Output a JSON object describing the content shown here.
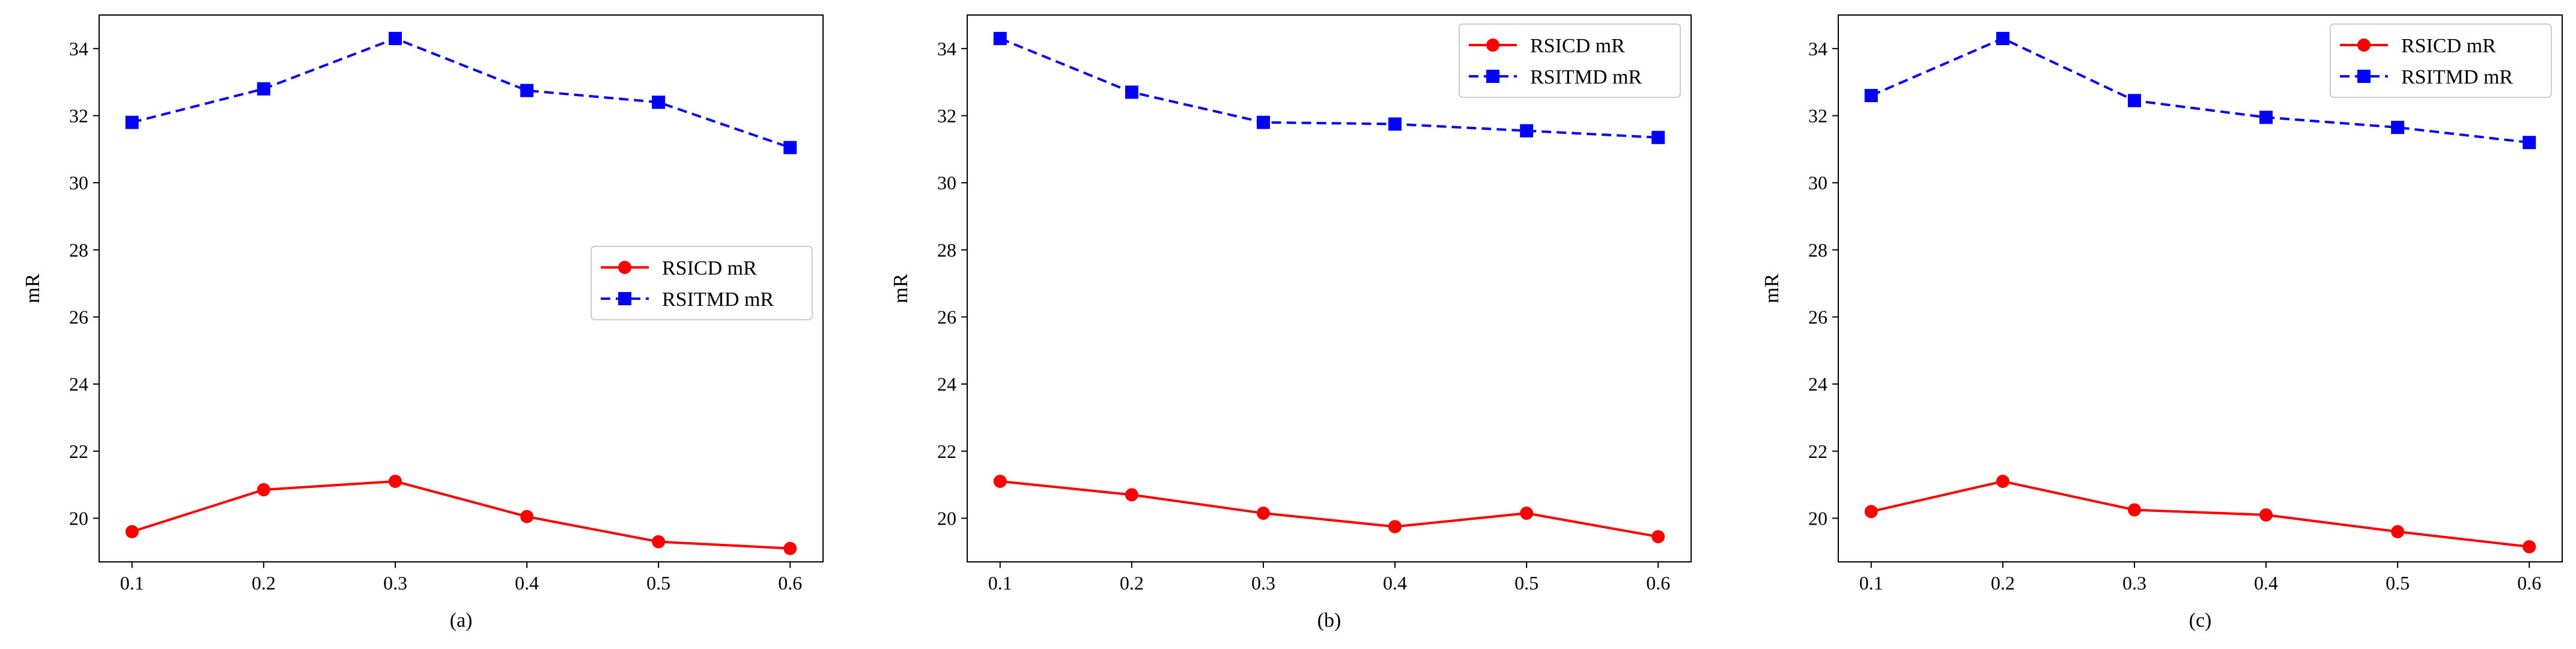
{
  "figure": {
    "colors": {
      "rsicd": "#ff0000",
      "rsitmd": "#0000ff"
    }
  },
  "chart_data": [
    {
      "type": "line",
      "caption": "(a)",
      "xlabel": "",
      "ylabel": "mR",
      "x": [
        0.1,
        0.2,
        0.3,
        0.4,
        0.5,
        0.6
      ],
      "x_tick_labels": [
        "0.1",
        "0.2",
        "0.3",
        "0.4",
        "0.5",
        "0.6"
      ],
      "y_tick_labels": [
        "20",
        "22",
        "24",
        "26",
        "28",
        "30",
        "32",
        "34"
      ],
      "xlim": [
        0.075,
        0.625
      ],
      "ylim": [
        18.7,
        35.0
      ],
      "legend_position": "center-right",
      "series": [
        {
          "name": "RSICD mR",
          "style": "solid",
          "marker": "circle",
          "values": [
            19.6,
            20.85,
            21.1,
            20.05,
            19.3,
            19.1
          ]
        },
        {
          "name": "RSITMD mR",
          "style": "dashed",
          "marker": "square",
          "values": [
            31.8,
            32.8,
            34.3,
            32.75,
            32.4,
            31.05
          ]
        }
      ]
    },
    {
      "type": "line",
      "caption": "(b)",
      "xlabel": "",
      "ylabel": "mR",
      "x": [
        0.1,
        0.2,
        0.3,
        0.4,
        0.5,
        0.6
      ],
      "x_tick_labels": [
        "0.1",
        "0.2",
        "0.3",
        "0.4",
        "0.5",
        "0.6"
      ],
      "y_tick_labels": [
        "20",
        "22",
        "24",
        "26",
        "28",
        "30",
        "32",
        "34"
      ],
      "xlim": [
        0.075,
        0.625
      ],
      "ylim": [
        18.7,
        35.0
      ],
      "legend_position": "top-right",
      "series": [
        {
          "name": "RSICD mR",
          "style": "solid",
          "marker": "circle",
          "values": [
            21.1,
            20.7,
            20.15,
            19.75,
            20.15,
            19.45
          ]
        },
        {
          "name": "RSITMD mR",
          "style": "dashed",
          "marker": "square",
          "values": [
            34.3,
            32.7,
            31.8,
            31.75,
            31.55,
            31.35
          ]
        }
      ]
    },
    {
      "type": "line",
      "caption": "(c)",
      "xlabel": "",
      "ylabel": "mR",
      "x": [
        0.1,
        0.2,
        0.3,
        0.4,
        0.5,
        0.6
      ],
      "x_tick_labels": [
        "0.1",
        "0.2",
        "0.3",
        "0.4",
        "0.5",
        "0.6"
      ],
      "y_tick_labels": [
        "20",
        "22",
        "24",
        "26",
        "28",
        "30",
        "32",
        "34"
      ],
      "xlim": [
        0.075,
        0.625
      ],
      "ylim": [
        18.7,
        35.0
      ],
      "legend_position": "top-right",
      "series": [
        {
          "name": "RSICD mR",
          "style": "solid",
          "marker": "circle",
          "values": [
            20.2,
            21.1,
            20.25,
            20.1,
            19.6,
            19.15
          ]
        },
        {
          "name": "RSITMD mR",
          "style": "dashed",
          "marker": "square",
          "values": [
            32.6,
            34.3,
            32.45,
            31.95,
            31.65,
            31.2
          ]
        }
      ]
    }
  ]
}
